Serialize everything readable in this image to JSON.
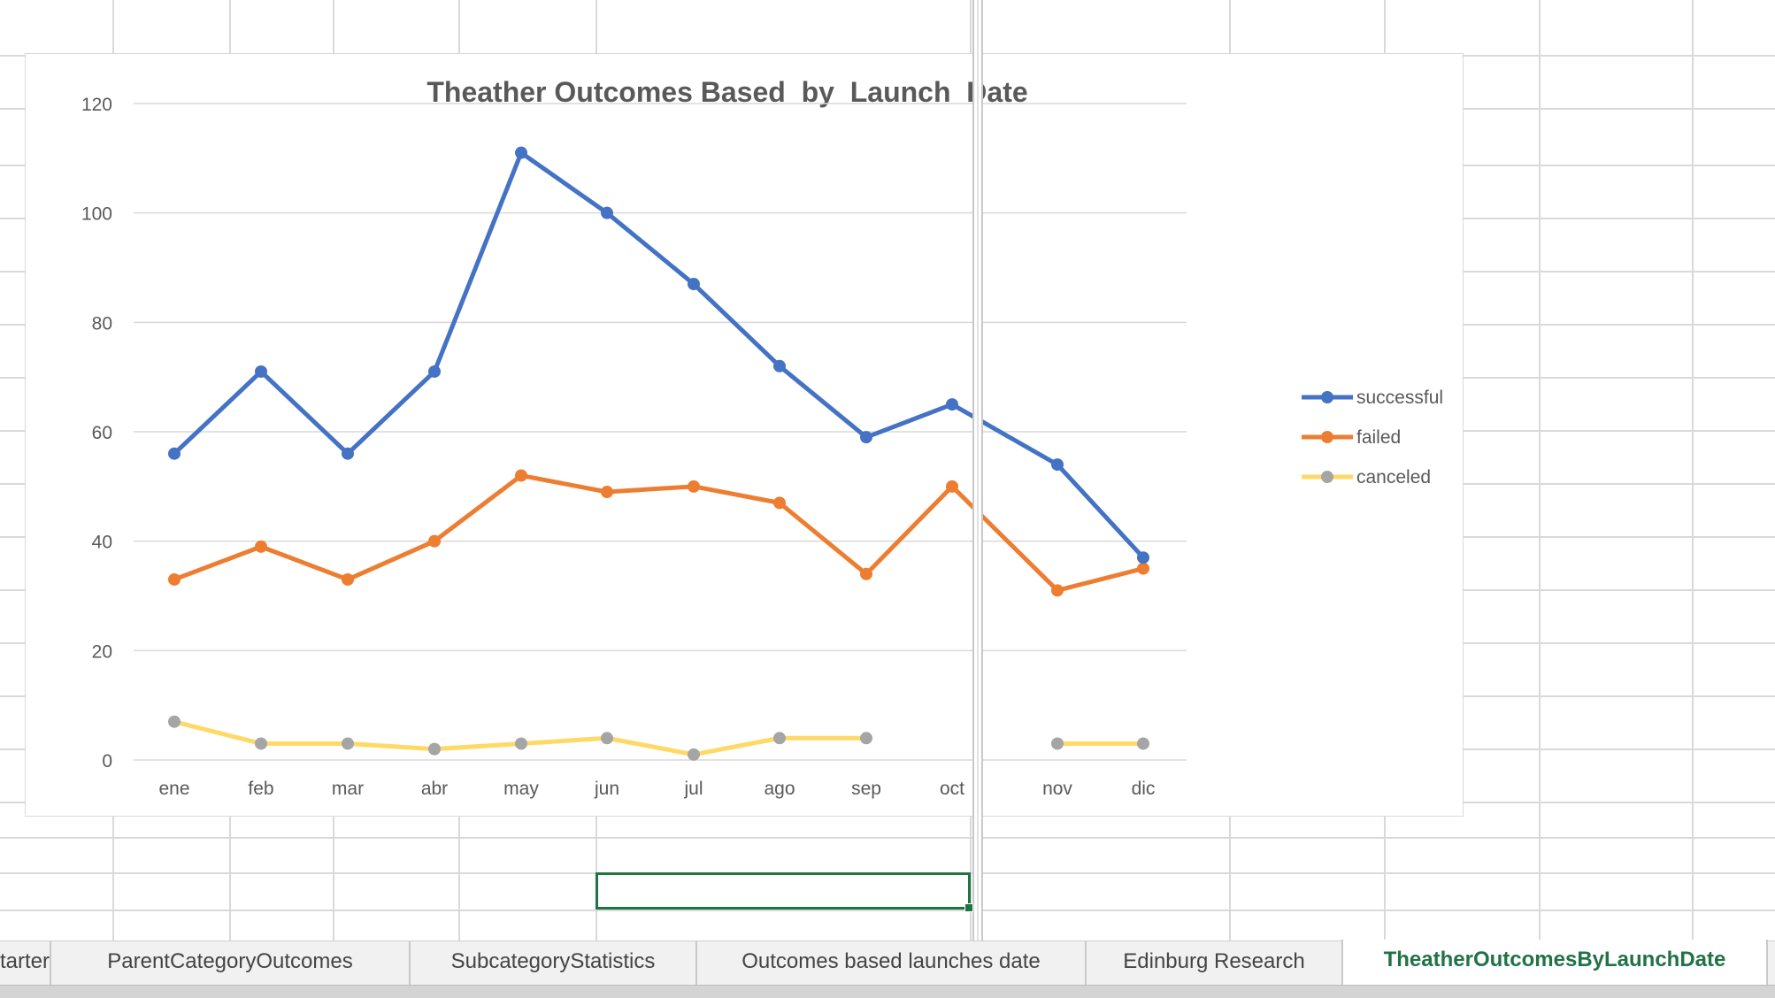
{
  "sheet_tabs": [
    {
      "label": "tarter",
      "active": false
    },
    {
      "label": "ParentCategoryOutcomes",
      "active": false
    },
    {
      "label": "SubcategoryStatistics",
      "active": false
    },
    {
      "label": "Outcomes based launches date",
      "active": false
    },
    {
      "label": "Edinburg Research",
      "active": false
    },
    {
      "label": "TheatherOutcomesByLaunchDate",
      "active": true
    }
  ],
  "colors": {
    "successful": "#4472c4",
    "failed": "#ed7d31",
    "canceled_line": "#ffd966",
    "canceled_marker": "#a5a5a5",
    "accent": "#217346"
  },
  "chart_data": {
    "type": "line",
    "title": "Theather Outcomes Based  by  Launch  Date",
    "categories": [
      "ene",
      "feb",
      "mar",
      "abr",
      "may",
      "jun",
      "jul",
      "ago",
      "sep",
      "oct",
      "nov",
      "dic"
    ],
    "series": [
      {
        "name": "successful",
        "values": [
          56,
          71,
          56,
          71,
          111,
          100,
          87,
          72,
          59,
          65,
          54,
          37
        ]
      },
      {
        "name": "failed",
        "values": [
          33,
          39,
          33,
          40,
          52,
          49,
          50,
          47,
          34,
          50,
          31,
          35
        ]
      },
      {
        "name": "canceled",
        "values": [
          7,
          3,
          3,
          2,
          3,
          4,
          1,
          4,
          4,
          null,
          3,
          3
        ]
      }
    ],
    "ylim": [
      0,
      120
    ],
    "yticks": [
      "0",
      "20",
      "40",
      "60",
      "80",
      "100",
      "120"
    ],
    "grid": true,
    "legend": "right",
    "xlabel": "",
    "ylabel": ""
  }
}
